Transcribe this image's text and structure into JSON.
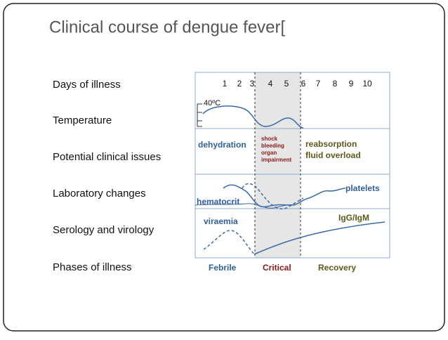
{
  "title": "Clinical course of dengue fever[",
  "row_labels": [
    "Days of illness",
    "Temperature",
    "Potential clinical issues",
    "Laboratory changes",
    "Serology and virology",
    "Phases of  illness"
  ],
  "days": [
    1,
    2,
    3,
    4,
    5,
    6,
    7,
    8,
    9,
    10
  ],
  "temperature_label": "40ºC",
  "clinical_issues": {
    "febrile": "dehydration",
    "critical": [
      "shock",
      "bleeding",
      "organ",
      "impairment"
    ],
    "recovery": [
      "reabsorption",
      "fluid overload"
    ]
  },
  "laboratory": {
    "platelets": "platelets",
    "hematocrit": "hematocrit"
  },
  "serology": {
    "viraemia": "viraemia",
    "antibodies": "IgG/IgM"
  },
  "phases": [
    "Febrile",
    "Critical",
    "Recovery"
  ]
}
